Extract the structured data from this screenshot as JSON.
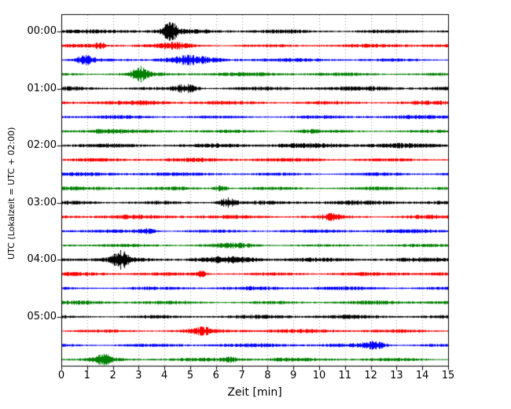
{
  "chart_data": {
    "type": "line",
    "subtype": "seismogram-dayplot",
    "title": "",
    "xlabel": "Zeit  [min]",
    "ylabel": "UTC (Lokalzeit = UTC + 02:00)",
    "x_ticks": [
      "0",
      "1",
      "2",
      "3",
      "4",
      "5",
      "6",
      "7",
      "8",
      "9",
      "10",
      "11",
      "12",
      "13",
      "14",
      "15"
    ],
    "y_tick_labels": [
      "00:00",
      "01:00",
      "02:00",
      "03:00",
      "04:00",
      "05:00"
    ],
    "x_range": [
      0,
      15
    ],
    "minutes_per_line": 15,
    "lines_per_hour": 4,
    "grid": "dotted-vertical-per-minute",
    "legend": "none",
    "colors": {
      "cycle": [
        "#000000",
        "#ff0000",
        "#0000ff",
        "#008000"
      ],
      "grid": "#999999",
      "axis": "#000000",
      "background": "#ffffff"
    },
    "seed": 12345,
    "rows": [
      {
        "start": "00:00",
        "color": "#000000",
        "base": 2.5,
        "bursts": [
          {
            "t": 4.2,
            "a": 9.0,
            "w": 0.5
          }
        ]
      },
      {
        "start": "00:15",
        "color": "#ff0000",
        "base": 2.2,
        "bursts": [
          {
            "t": 1.5,
            "a": 4.0,
            "w": 0.3
          },
          {
            "t": 4.4,
            "a": 3.0,
            "w": 1.2
          }
        ]
      },
      {
        "start": "00:30",
        "color": "#0000ff",
        "base": 2.2,
        "bursts": [
          {
            "t": 0.9,
            "a": 6.0,
            "w": 0.5
          },
          {
            "t": 4.8,
            "a": 3.5,
            "w": 1.5
          }
        ]
      },
      {
        "start": "00:45",
        "color": "#008000",
        "base": 2.2,
        "bursts": [
          {
            "t": 3.0,
            "a": 9.0,
            "w": 0.5
          }
        ]
      },
      {
        "start": "01:00",
        "color": "#000000",
        "base": 2.5,
        "bursts": [
          {
            "t": 4.9,
            "a": 7.0,
            "w": 0.7
          }
        ]
      },
      {
        "start": "01:15",
        "color": "#ff0000",
        "base": 2.5,
        "bursts": []
      },
      {
        "start": "01:30",
        "color": "#0000ff",
        "base": 2.2,
        "bursts": []
      },
      {
        "start": "01:45",
        "color": "#008000",
        "base": 2.0,
        "bursts": [
          {
            "t": 1.5,
            "a": 2.5,
            "w": 1.0
          },
          {
            "t": 9.5,
            "a": 2.5,
            "w": 0.8
          }
        ]
      },
      {
        "start": "02:00",
        "color": "#000000",
        "base": 3.0,
        "bursts": []
      },
      {
        "start": "02:15",
        "color": "#ff0000",
        "base": 2.3,
        "bursts": []
      },
      {
        "start": "02:30",
        "color": "#0000ff",
        "base": 2.2,
        "bursts": []
      },
      {
        "start": "02:45",
        "color": "#008000",
        "base": 2.2,
        "bursts": [
          {
            "t": 6.2,
            "a": 8.0,
            "w": 0.4
          }
        ]
      },
      {
        "start": "03:00",
        "color": "#000000",
        "base": 2.5,
        "bursts": [
          {
            "t": 6.4,
            "a": 10.0,
            "w": 0.5
          }
        ]
      },
      {
        "start": "03:15",
        "color": "#ff0000",
        "base": 2.5,
        "bursts": [
          {
            "t": 10.5,
            "a": 3.0,
            "w": 0.6
          }
        ]
      },
      {
        "start": "03:30",
        "color": "#0000ff",
        "base": 2.2,
        "bursts": [
          {
            "t": 3.3,
            "a": 5.0,
            "w": 0.6
          }
        ]
      },
      {
        "start": "03:45",
        "color": "#008000",
        "base": 1.8,
        "bursts": [
          {
            "t": 6.9,
            "a": 2.5,
            "w": 1.5
          }
        ]
      },
      {
        "start": "04:00",
        "color": "#000000",
        "base": 2.5,
        "bursts": [
          {
            "t": 2.3,
            "a": 8.0,
            "w": 0.5
          },
          {
            "t": 7.0,
            "a": 3.0,
            "w": 3.0
          }
        ]
      },
      {
        "start": "04:15",
        "color": "#ff0000",
        "base": 2.3,
        "bursts": [
          {
            "t": 5.4,
            "a": 6.0,
            "w": 0.3
          }
        ]
      },
      {
        "start": "04:30",
        "color": "#0000ff",
        "base": 2.2,
        "bursts": []
      },
      {
        "start": "04:45",
        "color": "#008000",
        "base": 2.3,
        "bursts": []
      },
      {
        "start": "05:00",
        "color": "#000000",
        "base": 2.3,
        "bursts": []
      },
      {
        "start": "05:15",
        "color": "#ff0000",
        "base": 2.3,
        "bursts": [
          {
            "t": 5.4,
            "a": 3.0,
            "w": 0.8
          }
        ]
      },
      {
        "start": "05:30",
        "color": "#0000ff",
        "base": 2.2,
        "bursts": [
          {
            "t": 12.2,
            "a": 5.0,
            "w": 0.7
          }
        ]
      },
      {
        "start": "05:45",
        "color": "#008000",
        "base": 2.2,
        "bursts": [
          {
            "t": 1.6,
            "a": 6.0,
            "w": 0.6
          },
          {
            "t": 6.6,
            "a": 3.0,
            "w": 0.5
          }
        ]
      }
    ]
  }
}
